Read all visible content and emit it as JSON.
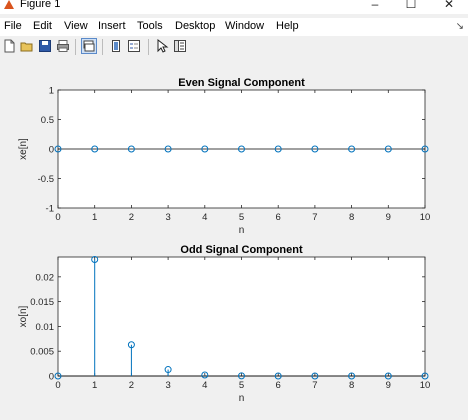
{
  "window": {
    "title": "Figure 1",
    "minimize": "–",
    "maximize": "☐",
    "close": "✕"
  },
  "menu": [
    "File",
    "Edit",
    "View",
    "Insert",
    "Tools",
    "Desktop",
    "Window",
    "Help"
  ],
  "toolbar_icons": [
    "new-figure-icon",
    "open-file-icon",
    "save-icon",
    "print-icon",
    "link-icon",
    "colorbar-icon",
    "legend-icon",
    "pointer-icon",
    "property-inspector-icon"
  ],
  "colors": {
    "stem": "#0072bd",
    "axes_bg": "#ffffff",
    "figure_bg": "#f0f0f0"
  },
  "chart_data": [
    {
      "type": "stem",
      "title": "Even Signal Component",
      "xlabel": "n",
      "ylabel": "xe[n]",
      "x": [
        0,
        1,
        2,
        3,
        4,
        5,
        6,
        7,
        8,
        9,
        10
      ],
      "values": [
        0,
        0,
        0,
        0,
        0,
        0,
        0,
        0,
        0,
        0,
        0
      ],
      "xlim": [
        0,
        10
      ],
      "ylim": [
        -1,
        1
      ],
      "xticks": [
        "0",
        "1",
        "2",
        "3",
        "4",
        "5",
        "6",
        "7",
        "8",
        "9",
        "10"
      ],
      "yticks": [
        -1,
        -0.5,
        0,
        0.5,
        1
      ],
      "yticklabels": [
        "-1",
        "-0.5",
        "0",
        "0.5",
        "1"
      ],
      "grid": false
    },
    {
      "type": "stem",
      "title": "Odd Signal Component",
      "xlabel": "n",
      "ylabel": "xo[n]",
      "x": [
        0,
        1,
        2,
        3,
        4,
        5,
        6,
        7,
        8,
        9,
        10
      ],
      "values": [
        0,
        0.0235,
        0.0063,
        0.0013,
        0.0002,
        3e-05,
        0,
        0,
        0,
        0,
        0
      ],
      "xlim": [
        0,
        10
      ],
      "ylim": [
        0,
        0.024
      ],
      "xticks": [
        "0",
        "1",
        "2",
        "3",
        "4",
        "5",
        "6",
        "7",
        "8",
        "9",
        "10"
      ],
      "yticks": [
        0,
        0.005,
        0.01,
        0.015,
        0.02
      ],
      "yticklabels": [
        "0",
        "0.005",
        "0.01",
        "0.015",
        "0.02"
      ],
      "grid": false
    }
  ]
}
